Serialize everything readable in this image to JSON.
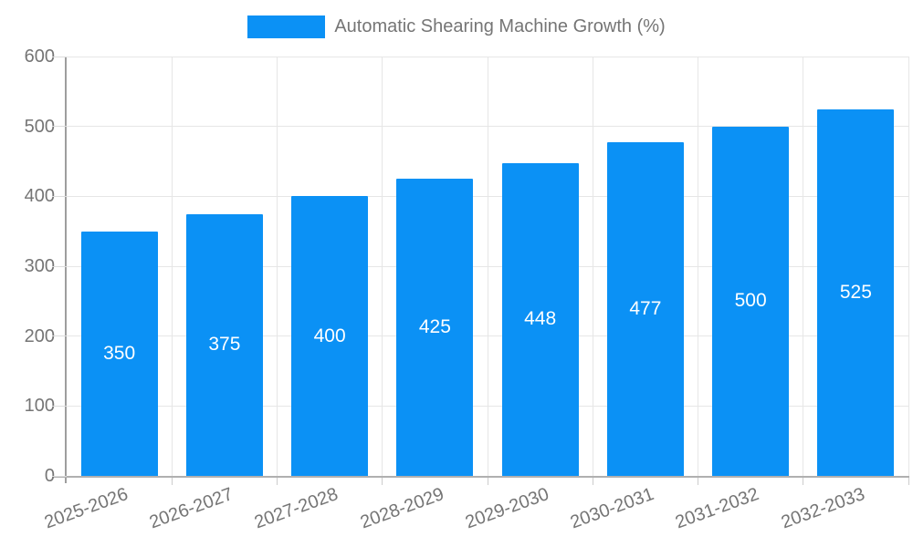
{
  "chart_data": {
    "type": "bar",
    "title": "",
    "legend": "Automatic Shearing Machine Growth (%)",
    "legend_position": "top",
    "categories": [
      "2025-2026",
      "2026-2027",
      "2027-2028",
      "2028-2029",
      "2029-2030",
      "2030-2031",
      "2031-2032",
      "2032-2033"
    ],
    "values": [
      350,
      375,
      400,
      425,
      448,
      477,
      500,
      525
    ],
    "data_labels": [
      350,
      375,
      400,
      425,
      448,
      477,
      500,
      525
    ],
    "yticks": [
      0,
      100,
      200,
      300,
      400,
      500,
      600
    ],
    "ylim": [
      0,
      600
    ],
    "xlabel": "",
    "ylabel": "",
    "grid": true,
    "data_label_position": "inside-center"
  },
  "colors": {
    "bar": "#0b91f5",
    "grid": "#e6e6e6",
    "axis_y": "#9e9e9e",
    "axis_x": "#b0b0b0",
    "tick_text": "#757575",
    "legend_text": "#757575",
    "data_label": "#ffffff",
    "background": "#ffffff"
  }
}
